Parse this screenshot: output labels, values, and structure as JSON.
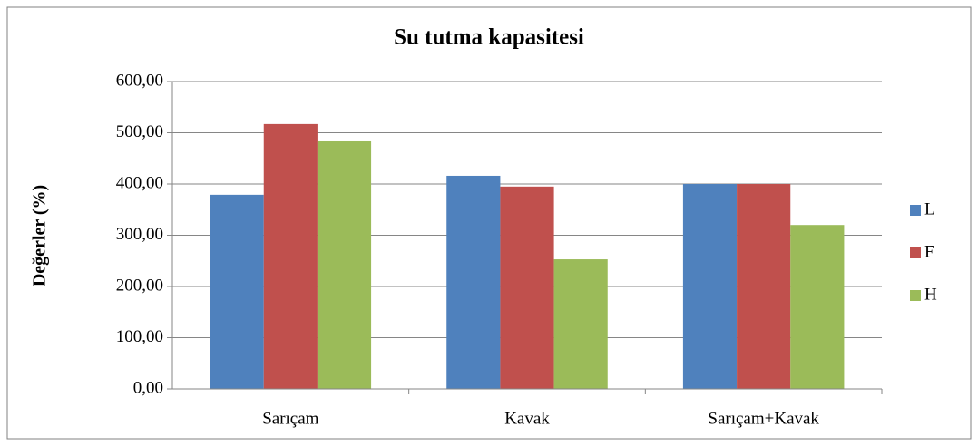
{
  "chart_data": {
    "type": "bar",
    "title": "Su tutma kapasitesi",
    "y_label": "Değerler (%)",
    "categories": [
      "Sarıçam",
      "Kavak",
      "Sarıçam+Kavak"
    ],
    "series": [
      {
        "name": "L",
        "color": "#4f81bd",
        "values": [
          379,
          416,
          400
        ]
      },
      {
        "name": "F",
        "color": "#c0504d",
        "values": [
          517,
          395,
          400
        ]
      },
      {
        "name": "H",
        "color": "#9bbb59",
        "values": [
          485,
          253,
          320
        ]
      }
    ],
    "ylim": [
      0,
      600
    ],
    "yticks": [
      {
        "value": 0,
        "label": "0,00"
      },
      {
        "value": 100,
        "label": "100,00"
      },
      {
        "value": 200,
        "label": "200,00"
      },
      {
        "value": 300,
        "label": "300,00"
      },
      {
        "value": 400,
        "label": "400,00"
      },
      {
        "value": 500,
        "label": "500,00"
      },
      {
        "value": 600,
        "label": "600,00"
      }
    ],
    "grid": true,
    "legend": "right"
  }
}
